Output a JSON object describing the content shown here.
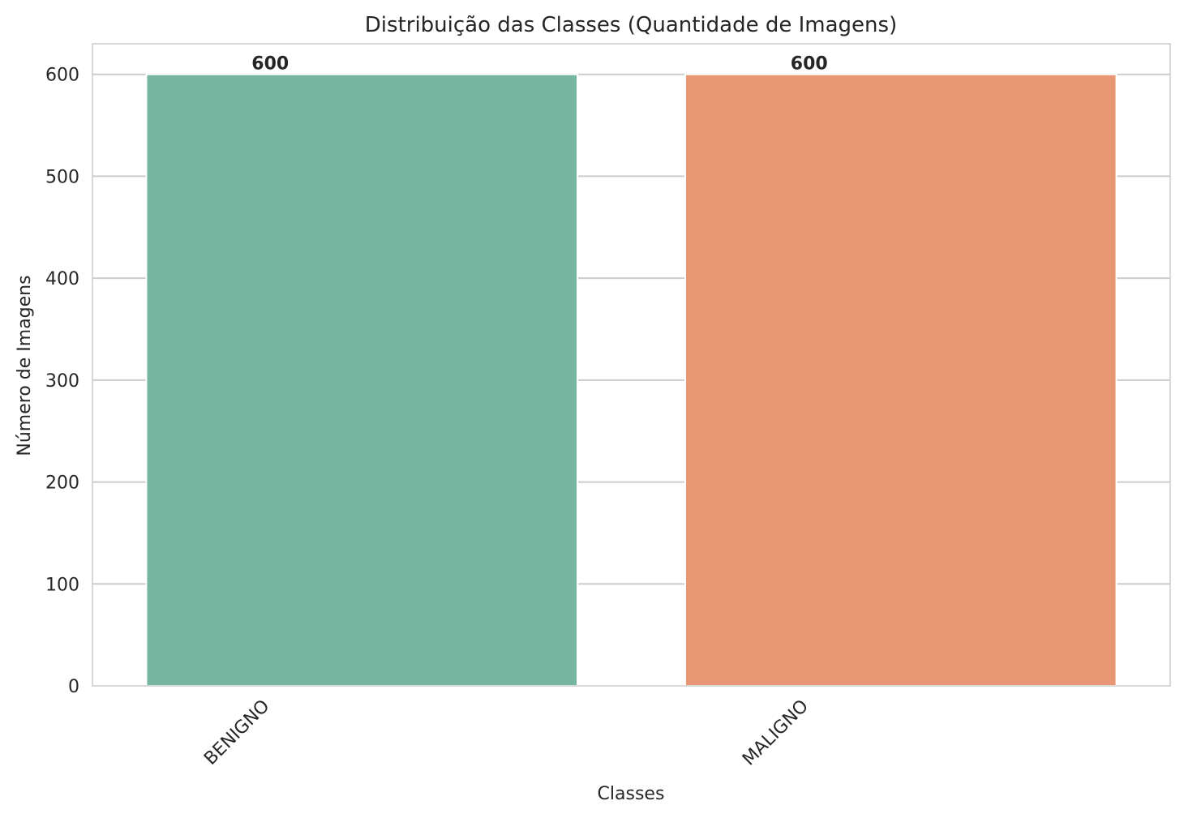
{
  "chart_data": {
    "type": "bar",
    "title": "Distribuição das Classes (Quantidade de Imagens)",
    "xlabel": "Classes",
    "ylabel": "Número de Imagens",
    "categories": [
      "BENIGNO",
      "MALIGNO"
    ],
    "values": [
      600,
      600
    ],
    "data_labels": [
      "600",
      "600"
    ],
    "colors": [
      "#76b6a1",
      "#e99675"
    ],
    "ylim": [
      0,
      630
    ],
    "yticks": [
      0,
      100,
      200,
      300,
      400,
      500,
      600
    ],
    "ytick_labels": [
      "0",
      "100",
      "200",
      "300",
      "400",
      "500",
      "600"
    ],
    "grid": true,
    "grid_color": "#cccccc",
    "xtick_rotation": "45deg"
  }
}
